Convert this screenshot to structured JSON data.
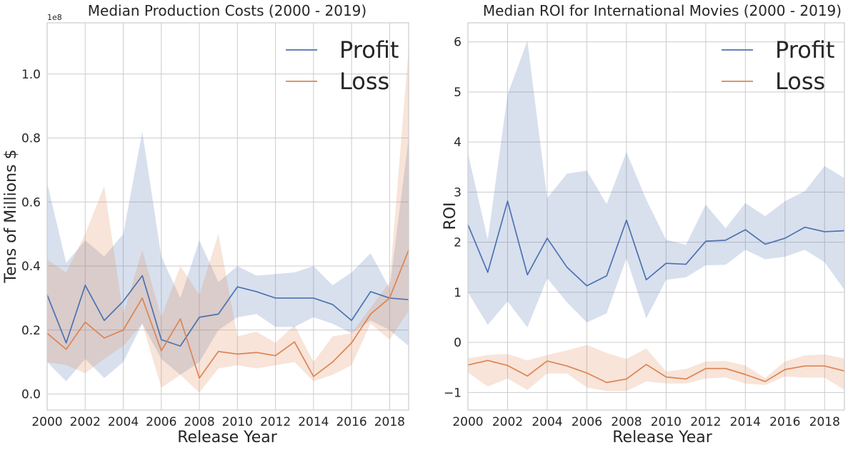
{
  "colors": {
    "profit": "#4c72b0",
    "loss": "#dd8452",
    "grid": "#cccccc",
    "text": "#262626"
  },
  "chart_data": [
    {
      "type": "line",
      "title": "Median Production Costs (2000 - 2019)",
      "xlabel": "Release Year",
      "ylabel": "Tens of Millions $",
      "offset_label": "1e8",
      "xlim": [
        2000,
        2019
      ],
      "ylim": [
        -0.05,
        1.16
      ],
      "xticks": [
        2000,
        2002,
        2004,
        2006,
        2008,
        2010,
        2012,
        2014,
        2016,
        2018
      ],
      "xtick_labels": [
        "2000",
        "2002",
        "2004",
        "2006",
        "2008",
        "2010",
        "2012",
        "2014",
        "2016",
        "2018"
      ],
      "yticks": [
        0.0,
        0.2,
        0.4,
        0.6,
        0.8,
        1.0
      ],
      "ytick_labels": [
        "0.0",
        "0.2",
        "0.4",
        "0.6",
        "0.8",
        "1.0"
      ],
      "grid": true,
      "legend_position": "top-right",
      "x": [
        2000,
        2001,
        2002,
        2003,
        2004,
        2005,
        2006,
        2007,
        2008,
        2009,
        2010,
        2011,
        2012,
        2013,
        2014,
        2015,
        2016,
        2017,
        2018,
        2019
      ],
      "series": [
        {
          "name": "Profit",
          "color": "#4c72b0",
          "values": [
            0.31,
            0.16,
            0.34,
            0.23,
            0.29,
            0.37,
            0.17,
            0.15,
            0.24,
            0.25,
            0.335,
            0.32,
            0.3,
            0.3,
            0.3,
            0.28,
            0.23,
            0.32,
            0.3,
            0.295
          ],
          "lower": [
            0.1,
            0.04,
            0.11,
            0.05,
            0.1,
            0.22,
            0.11,
            0.06,
            0.1,
            0.2,
            0.24,
            0.25,
            0.21,
            0.21,
            0.24,
            0.22,
            0.19,
            0.23,
            0.2,
            0.15
          ],
          "upper": [
            0.66,
            0.41,
            0.48,
            0.43,
            0.5,
            0.82,
            0.43,
            0.3,
            0.48,
            0.35,
            0.4,
            0.37,
            0.375,
            0.38,
            0.4,
            0.34,
            0.38,
            0.44,
            0.33,
            0.8
          ]
        },
        {
          "name": "Loss",
          "color": "#dd8452",
          "values": [
            0.19,
            0.14,
            0.225,
            0.175,
            0.2,
            0.3,
            0.135,
            0.235,
            0.05,
            0.133,
            0.125,
            0.13,
            0.12,
            0.163,
            0.055,
            0.1,
            0.16,
            0.25,
            0.3,
            0.45
          ],
          "lower": [
            0.1,
            0.09,
            0.065,
            0.11,
            0.15,
            0.22,
            0.02,
            0.06,
            0.005,
            0.08,
            0.09,
            0.08,
            0.09,
            0.1,
            0.04,
            0.06,
            0.09,
            0.22,
            0.17,
            0.26
          ],
          "upper": [
            0.42,
            0.38,
            0.5,
            0.65,
            0.25,
            0.45,
            0.24,
            0.4,
            0.31,
            0.5,
            0.18,
            0.195,
            0.16,
            0.215,
            0.1,
            0.18,
            0.19,
            0.27,
            0.35,
            1.08
          ]
        }
      ]
    },
    {
      "type": "line",
      "title": "Median ROI for International Movies (2000 - 2019)",
      "xlabel": "Release Year",
      "ylabel": "ROI",
      "xlim": [
        2000,
        2019
      ],
      "ylim": [
        -1.35,
        6.38
      ],
      "xticks": [
        2000,
        2002,
        2004,
        2006,
        2008,
        2010,
        2012,
        2014,
        2016,
        2018
      ],
      "xtick_labels": [
        "2000",
        "2002",
        "2004",
        "2006",
        "2008",
        "2010",
        "2012",
        "2014",
        "2016",
        "2018"
      ],
      "yticks": [
        -1,
        0,
        1,
        2,
        3,
        4,
        5,
        6
      ],
      "ytick_labels": [
        "−1",
        "0",
        "1",
        "2",
        "3",
        "4",
        "5",
        "6"
      ],
      "grid": true,
      "legend_position": "top-right",
      "x": [
        2000,
        2001,
        2002,
        2003,
        2004,
        2005,
        2006,
        2007,
        2008,
        2009,
        2010,
        2011,
        2012,
        2013,
        2014,
        2015,
        2016,
        2017,
        2018,
        2019
      ],
      "series": [
        {
          "name": "Profit",
          "color": "#4c72b0",
          "values": [
            2.35,
            1.4,
            2.82,
            1.35,
            2.08,
            1.5,
            1.13,
            1.33,
            2.44,
            1.25,
            1.58,
            1.56,
            2.02,
            2.04,
            2.25,
            1.96,
            2.08,
            2.3,
            2.21,
            2.23
          ],
          "lower": [
            1.0,
            0.35,
            0.82,
            0.3,
            1.28,
            0.8,
            0.4,
            0.58,
            1.68,
            0.48,
            1.25,
            1.3,
            1.54,
            1.55,
            1.85,
            1.66,
            1.71,
            1.85,
            1.6,
            1.05
          ],
          "upper": [
            3.78,
            2.05,
            4.95,
            6.02,
            2.88,
            3.37,
            3.43,
            2.76,
            3.8,
            2.85,
            2.05,
            1.95,
            2.75,
            2.28,
            2.78,
            2.52,
            2.82,
            3.02,
            3.52,
            3.28
          ]
        },
        {
          "name": "Loss",
          "color": "#dd8452",
          "values": [
            -0.45,
            -0.36,
            -0.46,
            -0.67,
            -0.37,
            -0.47,
            -0.61,
            -0.8,
            -0.73,
            -0.44,
            -0.69,
            -0.73,
            -0.52,
            -0.52,
            -0.64,
            -0.78,
            -0.54,
            -0.47,
            -0.47,
            -0.57
          ],
          "lower": [
            -0.6,
            -0.88,
            -0.72,
            -0.95,
            -0.62,
            -0.62,
            -0.9,
            -0.97,
            -0.97,
            -0.78,
            -0.82,
            -0.82,
            -0.72,
            -0.7,
            -0.82,
            -0.85,
            -0.68,
            -0.7,
            -0.7,
            -0.95
          ],
          "upper": [
            -0.32,
            -0.25,
            -0.23,
            -0.36,
            -0.25,
            -0.16,
            -0.05,
            -0.21,
            -0.33,
            -0.12,
            -0.58,
            -0.53,
            -0.38,
            -0.37,
            -0.46,
            -0.71,
            -0.38,
            -0.26,
            -0.24,
            -0.32
          ]
        }
      ]
    }
  ]
}
